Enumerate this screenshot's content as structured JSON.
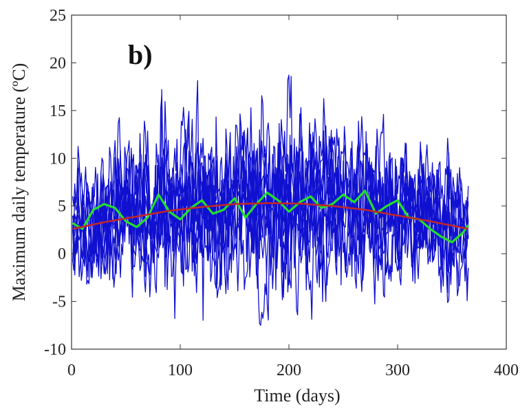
{
  "chart_data": {
    "type": "line",
    "panel_label": "b)",
    "xlabel": "Time (days)",
    "ylabel": "Maximum daily temperature (ºC)",
    "xlim": [
      0,
      400
    ],
    "ylim": [
      -10,
      25
    ],
    "xticks": [
      0,
      100,
      200,
      300,
      400
    ],
    "yticks": [
      -10,
      -5,
      0,
      5,
      10,
      15,
      20,
      25
    ],
    "grid": false,
    "legend": "none",
    "colors": {
      "simulations": "#1010d0",
      "mean": "#22e02a",
      "seasonal_fit": "#c0262c",
      "axes": "#333333"
    },
    "series": [
      {
        "role": "simulated-series-ensemble",
        "count": 10,
        "x_range": [
          1,
          365
        ],
        "approx_min": -7.5,
        "approx_max": 20
      },
      {
        "role": "ensemble-mean",
        "x": [
          1,
          10,
          20,
          30,
          40,
          50,
          60,
          70,
          80,
          90,
          100,
          110,
          120,
          130,
          140,
          150,
          160,
          170,
          180,
          190,
          200,
          210,
          220,
          230,
          240,
          250,
          260,
          270,
          280,
          290,
          300,
          310,
          320,
          330,
          340,
          350,
          360,
          365
        ],
        "y": [
          3.2,
          2.6,
          4.6,
          5.2,
          4.8,
          3.4,
          2.8,
          3.8,
          6.2,
          4.4,
          3.6,
          4.8,
          5.6,
          4.2,
          4.6,
          5.8,
          3.8,
          5.2,
          6.4,
          5.6,
          4.4,
          5.4,
          6.0,
          4.8,
          5.2,
          6.2,
          5.4,
          6.6,
          4.2,
          5.0,
          5.6,
          3.8,
          3.6,
          2.6,
          1.8,
          1.2,
          2.2,
          3.0
        ]
      },
      {
        "role": "seasonal-fit",
        "x": [
          1,
          30,
          60,
          90,
          120,
          150,
          180,
          210,
          240,
          270,
          300,
          330,
          365
        ],
        "y": [
          2.6,
          3.3,
          3.9,
          4.5,
          4.9,
          5.2,
          5.3,
          5.25,
          5.0,
          4.6,
          4.0,
          3.4,
          2.6
        ]
      }
    ]
  }
}
